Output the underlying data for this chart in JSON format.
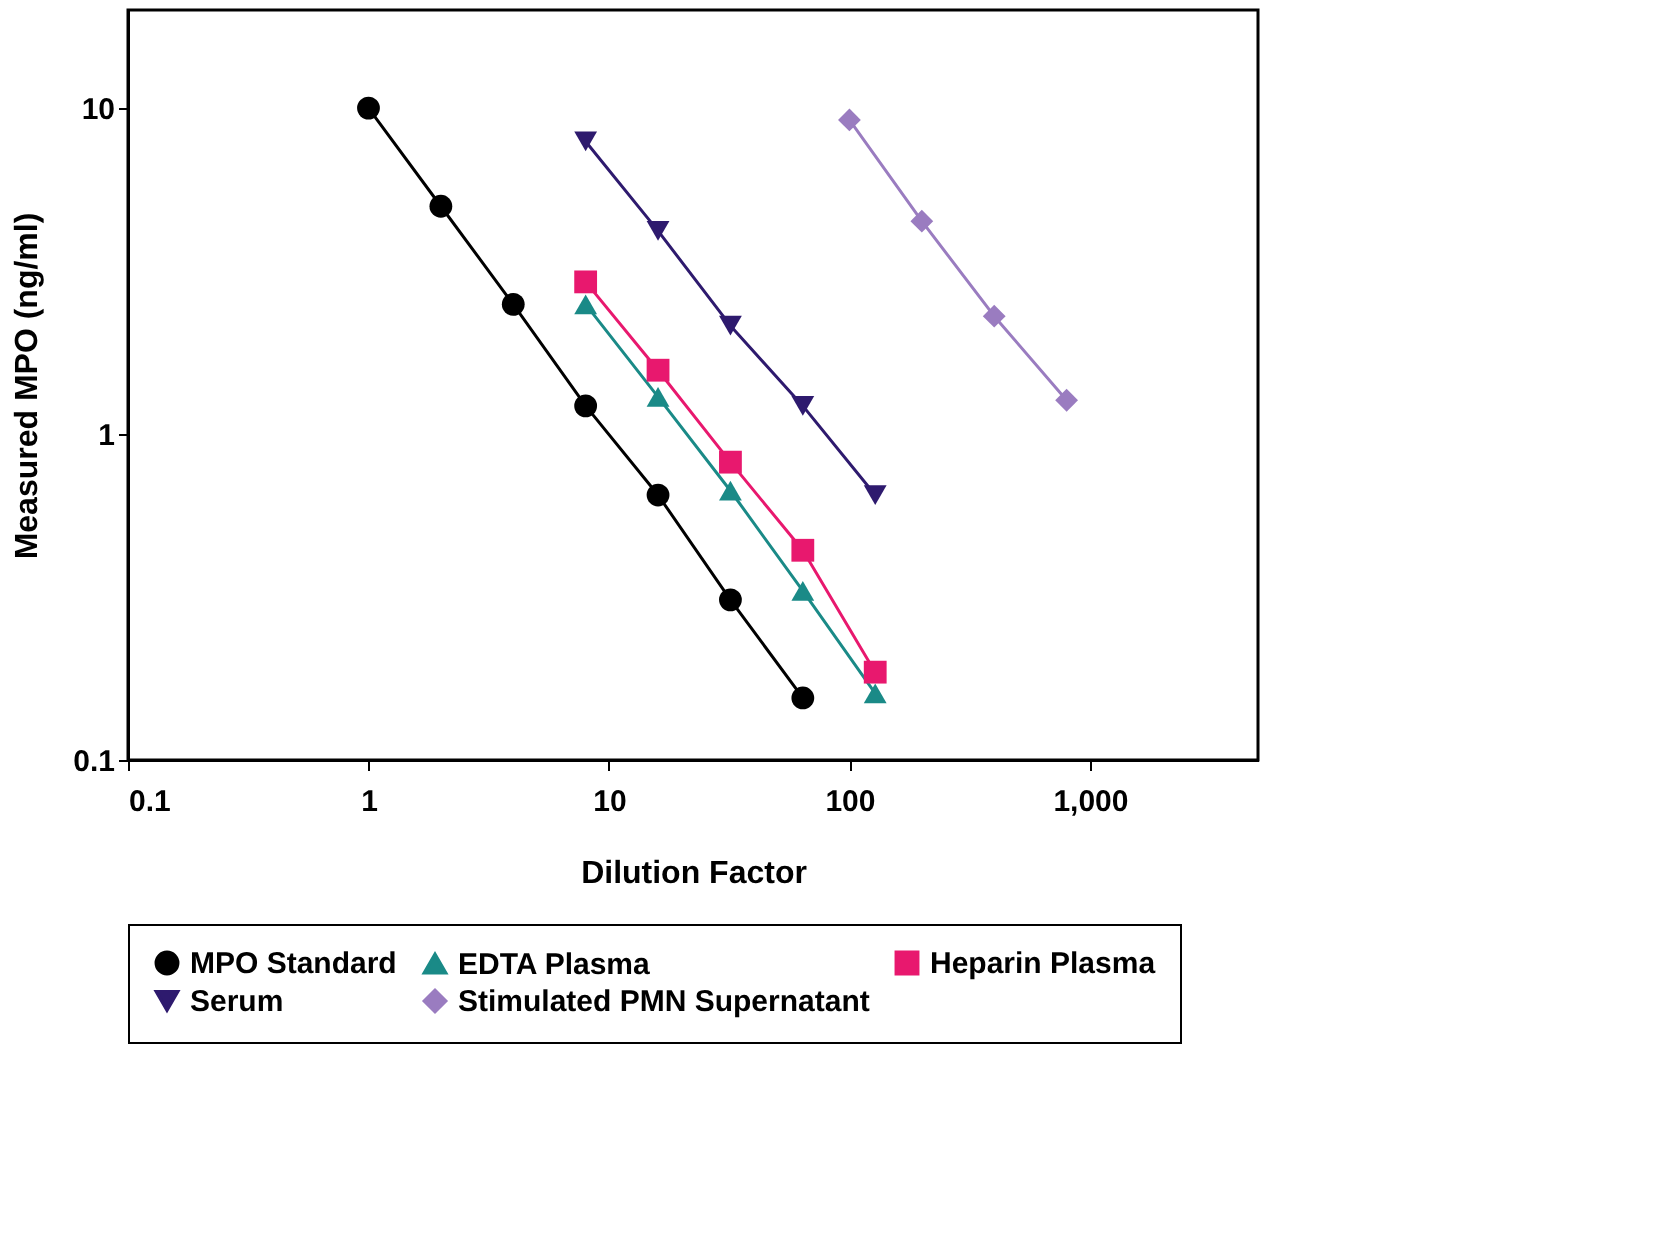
{
  "chart_data": {
    "type": "line",
    "xlabel": "Dilution Factor",
    "ylabel": "Measured MPO (ng/ml)",
    "log": "xy",
    "xlim": [
      0.1,
      5000
    ],
    "ylim": [
      0.1,
      20
    ],
    "xticks": [
      0.1,
      1,
      10,
      100,
      {
        "value": 1000,
        "label": "1,000"
      }
    ],
    "yticks": [
      0.1,
      1,
      10
    ],
    "grid": false,
    "legend": "bottom",
    "series": [
      {
        "name": "MPO Standard",
        "color": "#000000",
        "marker": "circle",
        "x": [
          1,
          2,
          4,
          8,
          16,
          32,
          64
        ],
        "values": [
          10,
          5.0,
          2.5,
          1.22,
          0.65,
          0.31,
          0.155
        ]
      },
      {
        "name": "EDTA Plasma",
        "color": "#1a8a87",
        "marker": "triangle",
        "x": [
          8,
          16,
          32,
          64,
          128
        ],
        "values": [
          2.5,
          1.3,
          0.67,
          0.33,
          0.16
        ]
      },
      {
        "name": "Heparin Plasma",
        "color": "#e8186e",
        "marker": "square",
        "x": [
          8,
          16,
          32,
          64,
          128
        ],
        "values": [
          2.93,
          1.57,
          0.82,
          0.44,
          0.186
        ]
      },
      {
        "name": "Serum",
        "color": "#2e1a6e",
        "marker": "triangle-down",
        "x": [
          8,
          16,
          32,
          64,
          128
        ],
        "values": [
          7.9,
          4.2,
          2.15,
          1.22,
          0.65
        ]
      },
      {
        "name": "Stimulated PMN Supernatant",
        "color": "#9a7cc0",
        "marker": "diamond",
        "x": [
          100,
          200,
          400,
          800
        ],
        "values": [
          9.2,
          4.5,
          2.3,
          1.27
        ]
      }
    ]
  }
}
